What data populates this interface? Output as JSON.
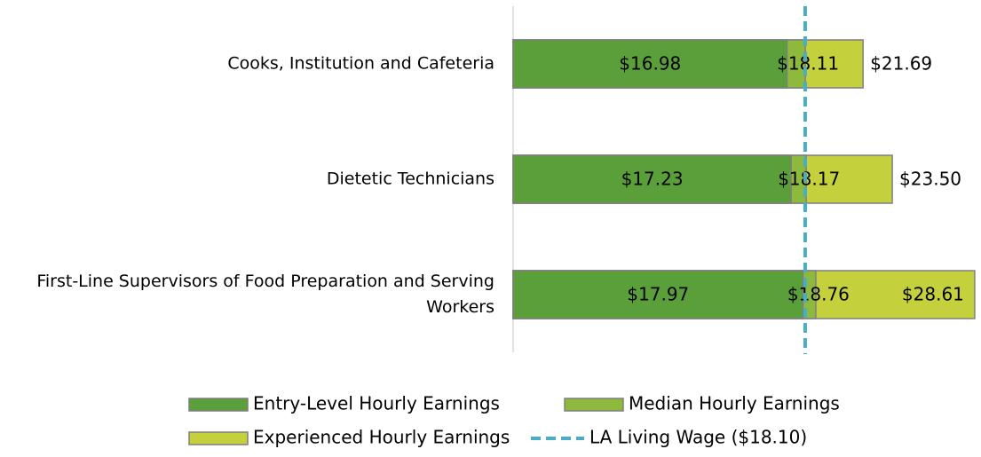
{
  "chart_data": {
    "type": "bar",
    "orientation": "horizontal",
    "overlap": true,
    "categories": [
      "Cooks, Institution and Cafeteria",
      "Dietetic Technicians",
      "First-Line Supervisors of Food Preparation and Serving Workers"
    ],
    "series": [
      {
        "name": "Entry-Level Hourly Earnings",
        "color": "#5b9f3b",
        "values": [
          16.98,
          17.23,
          17.97
        ],
        "value_labels": [
          "$16.98",
          "$17.23",
          "$17.97"
        ]
      },
      {
        "name": "Median Hourly Earnings",
        "color": "#8dba3c",
        "values": [
          18.11,
          18.17,
          18.76
        ],
        "value_labels": [
          "$18.11",
          "$18.17",
          "$18.76"
        ]
      },
      {
        "name": "Experienced Hourly Earnings",
        "color": "#c5d13c",
        "values": [
          21.69,
          23.5,
          28.61
        ],
        "value_labels": [
          "$21.69",
          "$23.50",
          "$28.61"
        ]
      }
    ],
    "reference_line": {
      "name": "LA Living Wage ($18.10)",
      "value": 18.1,
      "color": "#4bacc6"
    },
    "xlim": [
      0,
      29
    ],
    "legend": "bottom"
  }
}
